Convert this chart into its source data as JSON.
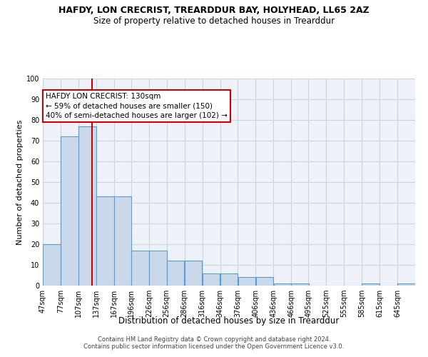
{
  "title": "HAFDY, LON CRECRIST, TREARDDUR BAY, HOLYHEAD, LL65 2AZ",
  "subtitle": "Size of property relative to detached houses in Trearddur",
  "xlabel": "Distribution of detached houses by size in Trearddur",
  "ylabel": "Number of detached properties",
  "bin_labels": [
    "47sqm",
    "77sqm",
    "107sqm",
    "137sqm",
    "167sqm",
    "196sqm",
    "226sqm",
    "256sqm",
    "286sqm",
    "316sqm",
    "346sqm",
    "376sqm",
    "406sqm",
    "436sqm",
    "466sqm",
    "495sqm",
    "525sqm",
    "555sqm",
    "585sqm",
    "615sqm",
    "645sqm"
  ],
  "bar_values": [
    20,
    72,
    77,
    43,
    43,
    17,
    17,
    12,
    12,
    6,
    6,
    4,
    4,
    1,
    1,
    0,
    0,
    0,
    1,
    0,
    1
  ],
  "bar_color": "#c9d9ea",
  "bar_edge_color": "#5b9bd5",
  "vline_x": 130,
  "vline_color": "#cc0000",
  "annotation_text": "HAFDY LON CRECRIST: 130sqm\n← 59% of detached houses are smaller (150)\n40% of semi-detached houses are larger (102) →",
  "annotation_box_color": "#ffffff",
  "annotation_box_edge": "#cc0000",
  "ylim": [
    0,
    100
  ],
  "footer": "Contains HM Land Registry data © Crown copyright and database right 2024.\nContains public sector information licensed under the Open Government Licence v3.0.",
  "bg_color": "#ffffff",
  "axes_bg_color": "#eef2f8",
  "grid_color": "#c8d4e3",
  "title_fontsize": 9,
  "subtitle_fontsize": 8.5,
  "ylabel_fontsize": 8,
  "xlabel_fontsize": 8.5,
  "tick_fontsize": 7,
  "footer_fontsize": 6,
  "ann_fontsize": 7.5
}
